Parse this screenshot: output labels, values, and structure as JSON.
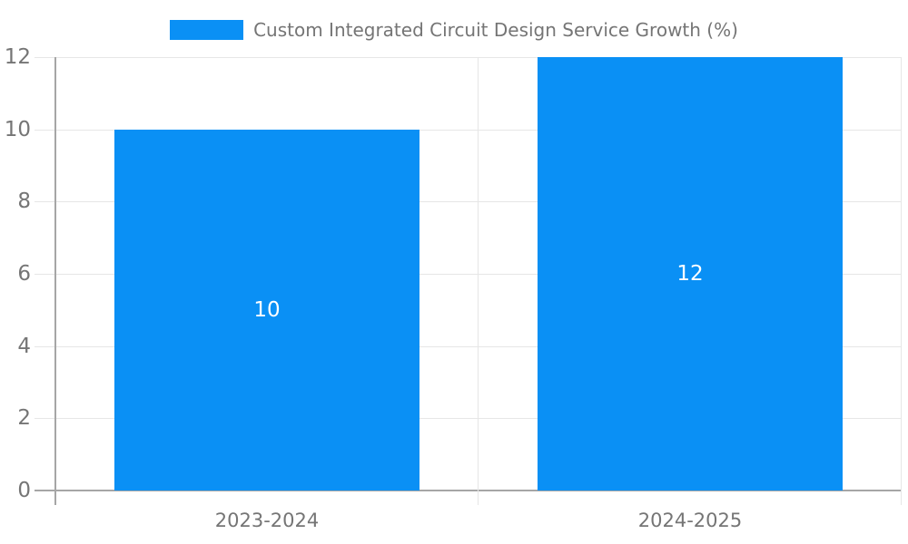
{
  "chart_data": {
    "type": "bar",
    "title": "Custom Integrated Circuit Design Service Growth (%)",
    "categories": [
      "2023-2024",
      "2024-2025"
    ],
    "values": [
      10,
      12
    ],
    "bar_labels": [
      "10",
      "12"
    ],
    "y_ticks": [
      0,
      2,
      4,
      6,
      8,
      10,
      12
    ],
    "ylim": [
      0,
      12
    ],
    "xlabel": "",
    "ylabel": "",
    "grid": true,
    "legend": {
      "label": "Custom Integrated Circuit Design Service Growth (%)",
      "position": "top-center"
    },
    "colors": {
      "bar": "#0a90f5",
      "bar_label": "#ffffff",
      "grid": "#e6e6e6",
      "axis": "#a6a6a6",
      "text": "#757575",
      "background": "#ffffff"
    }
  }
}
